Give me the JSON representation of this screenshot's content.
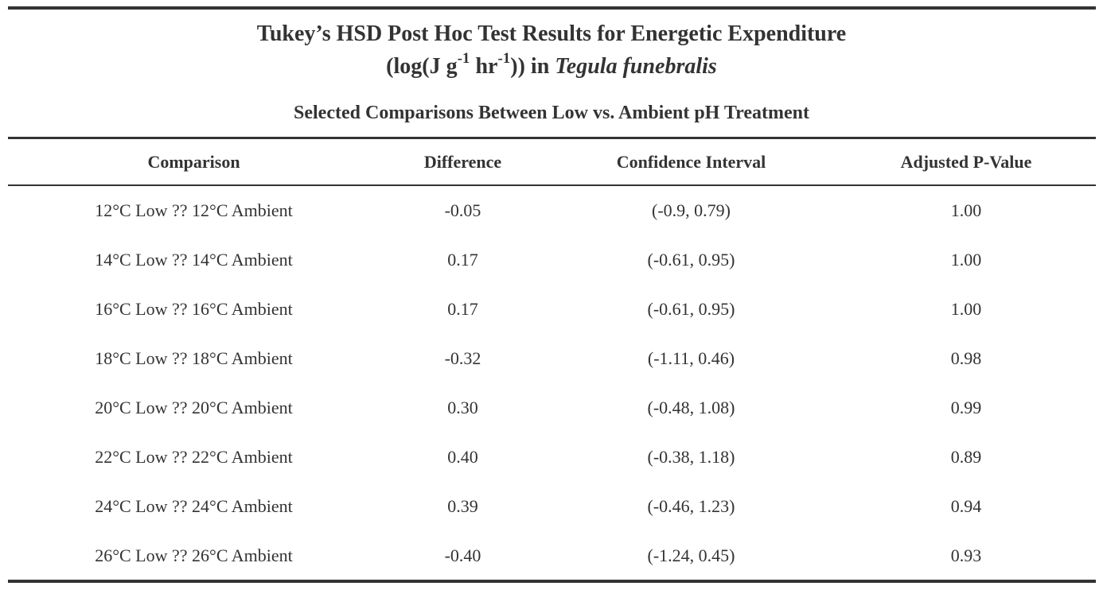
{
  "title": {
    "line1": "Tukey’s HSD Post Hoc Test Results for Energetic Expenditure",
    "line2_prefix": "(log(J g",
    "exp1": "-1",
    "line2_mid": " hr",
    "exp2": "-1",
    "line2_suffix": ")) in ",
    "species": "Tegula funebralis"
  },
  "subtitle": "Selected Comparisons Between Low vs. Ambient pH Treatment",
  "table": {
    "headers": [
      "Comparison",
      "Difference",
      "Confidence Interval",
      "Adjusted P-Value"
    ],
    "rows": [
      [
        "12°C Low ?? 12°C Ambient",
        "-0.05",
        "(-0.9, 0.79)",
        "1.00"
      ],
      [
        "14°C Low ?? 14°C Ambient",
        "0.17",
        "(-0.61, 0.95)",
        "1.00"
      ],
      [
        "16°C Low ?? 16°C Ambient",
        "0.17",
        "(-0.61, 0.95)",
        "1.00"
      ],
      [
        "18°C Low ?? 18°C Ambient",
        "-0.32",
        "(-1.11, 0.46)",
        "0.98"
      ],
      [
        "20°C Low ?? 20°C Ambient",
        "0.30",
        "(-0.48, 1.08)",
        "0.99"
      ],
      [
        "22°C Low ?? 22°C Ambient",
        "0.40",
        "(-0.38, 1.18)",
        "0.89"
      ],
      [
        "24°C Low ?? 24°C Ambient",
        "0.39",
        "(-0.46, 1.23)",
        "0.94"
      ],
      [
        "26°C Low ?? 26°C Ambient",
        "-0.40",
        "(-1.24, 0.45)",
        "0.93"
      ]
    ]
  },
  "colors": {
    "text": "#333333",
    "rules": "#333333",
    "background": "#ffffff"
  }
}
